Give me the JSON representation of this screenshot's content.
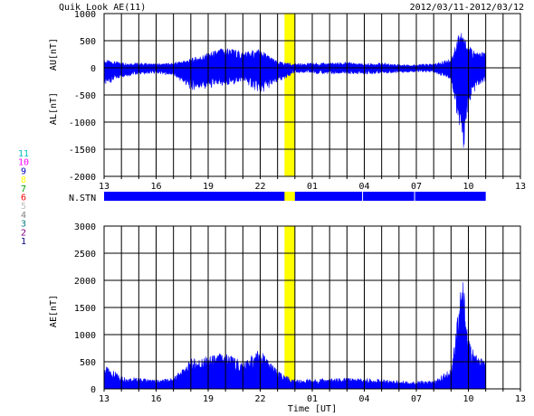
{
  "header": {
    "title": "Quik Look AE(11)",
    "date_range": "2012/03/11-2012/03/12"
  },
  "colors": {
    "fill": "#0000ff",
    "highlight": "#ffff00",
    "grid": "#000000"
  },
  "stations": {
    "label": "N.STN",
    "legend": [
      {
        "label": "11",
        "color": "#00c0c0"
      },
      {
        "label": "10",
        "color": "#ff00ff"
      },
      {
        "label": "9",
        "color": "#0000c0"
      },
      {
        "label": "8",
        "color": "#ffff00"
      },
      {
        "label": "7",
        "color": "#00a000"
      },
      {
        "label": "6",
        "color": "#ff0000"
      },
      {
        "label": "5",
        "color": "#c0c0c0"
      },
      {
        "label": "4",
        "color": "#808080"
      },
      {
        "label": "3",
        "color": "#008080"
      },
      {
        "label": "2",
        "color": "#800080"
      },
      {
        "label": "1",
        "color": "#000080"
      }
    ]
  },
  "chart_data": [
    {
      "type": "area",
      "title": "Quik Look AE(11)",
      "xlabel": "",
      "ylabel_upper": "AU[nT]",
      "ylabel_lower": "AL[nT]",
      "xlim": [
        13,
        37
      ],
      "ylim": [
        -2000,
        1000
      ],
      "x_ticks": [
        "13",
        "16",
        "19",
        "22",
        "01",
        "04",
        "07",
        "10",
        "13"
      ],
      "y_ticks": [
        "1000",
        "500",
        "0",
        "-500",
        "-1000",
        "-1500",
        "-2000"
      ],
      "series": [
        {
          "name": "AU",
          "x": [
            13,
            14,
            15,
            16,
            17,
            18,
            19,
            20,
            21,
            22,
            23,
            24,
            25,
            26,
            27,
            28,
            29,
            30,
            31,
            32,
            33,
            33.5,
            34,
            34.5,
            35
          ],
          "values": [
            100,
            70,
            60,
            50,
            60,
            120,
            200,
            280,
            220,
            250,
            80,
            50,
            60,
            60,
            70,
            50,
            60,
            40,
            40,
            50,
            120,
            550,
            300,
            200,
            220
          ]
        },
        {
          "name": "AL",
          "x": [
            13,
            14,
            15,
            16,
            17,
            18,
            19,
            20,
            21,
            22,
            23,
            24,
            25,
            26,
            27,
            28,
            29,
            30,
            31,
            32,
            33,
            33.5,
            33.7,
            34,
            34.5,
            35
          ],
          "values": [
            -250,
            -120,
            -80,
            -70,
            -100,
            -300,
            -280,
            -250,
            -180,
            -350,
            -200,
            -60,
            -70,
            -80,
            -80,
            -80,
            -70,
            -60,
            -50,
            -60,
            -150,
            -900,
            -1180,
            -500,
            -250,
            -200
          ]
        }
      ],
      "highlight_x": [
        23.4,
        24
      ]
    },
    {
      "type": "area",
      "title": "",
      "xlabel": "Time [UT]",
      "ylabel": "AE[nT]",
      "xlim": [
        13,
        37
      ],
      "ylim": [
        0,
        3000
      ],
      "x_ticks": [
        "13",
        "16",
        "19",
        "22",
        "01",
        "04",
        "07",
        "10",
        "13"
      ],
      "y_ticks": [
        "3000",
        "2500",
        "2000",
        "1500",
        "1000",
        "500",
        "0"
      ],
      "series": [
        {
          "name": "AE",
          "x": [
            13,
            14,
            15,
            16,
            17,
            18,
            19,
            20,
            21,
            22,
            23,
            24,
            25,
            26,
            27,
            28,
            29,
            30,
            31,
            32,
            33,
            33.5,
            33.7,
            34,
            34.5,
            35
          ],
          "values": [
            330,
            180,
            150,
            120,
            150,
            420,
            460,
            520,
            380,
            560,
            250,
            120,
            130,
            140,
            150,
            140,
            130,
            110,
            100,
            110,
            280,
            1400,
            1600,
            700,
            450,
            420
          ]
        }
      ],
      "highlight_x": [
        23.4,
        24
      ]
    }
  ],
  "station_bar": {
    "xlim": [
      13,
      35
    ],
    "gaps": [
      27.9,
      30.9
    ],
    "highlight_x": [
      23.4,
      24
    ]
  }
}
